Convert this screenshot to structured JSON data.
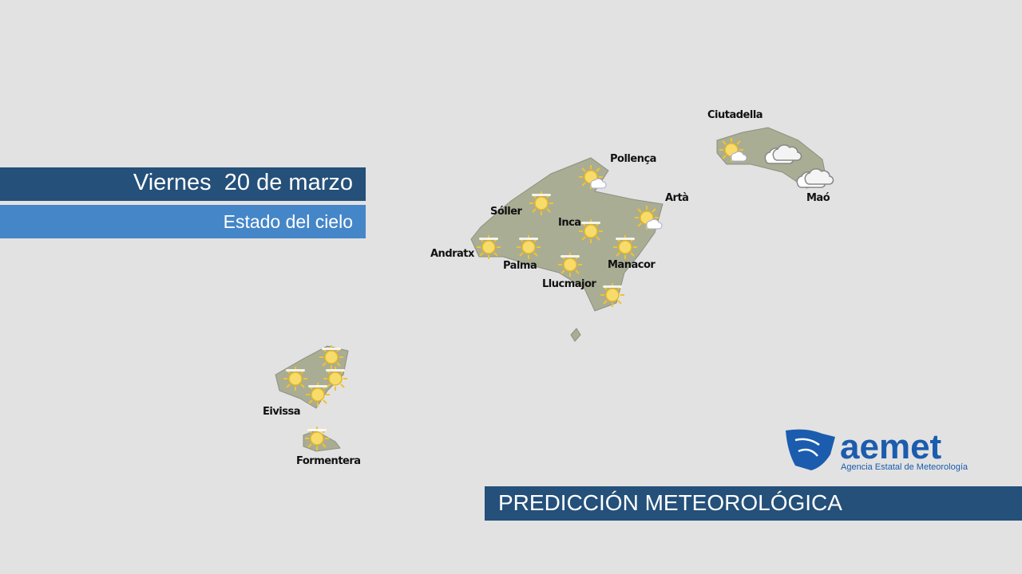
{
  "header": {
    "title": "Viernes  20 de marzo",
    "subtitle": "Estado del cielo"
  },
  "places": [
    "Ciutadella",
    "Pollença",
    "Artà",
    "Maó",
    "Sóller",
    "Inca",
    "Andratx",
    "Palma",
    "Manacor",
    "Llucmajor",
    "Eivissa",
    "Formentera"
  ],
  "logo": {
    "name": "aemet",
    "tagline": "Agencia Estatal de Meteorología"
  },
  "footer": {
    "title": "PREDICCIÓN METEOROLÓGICA"
  }
}
